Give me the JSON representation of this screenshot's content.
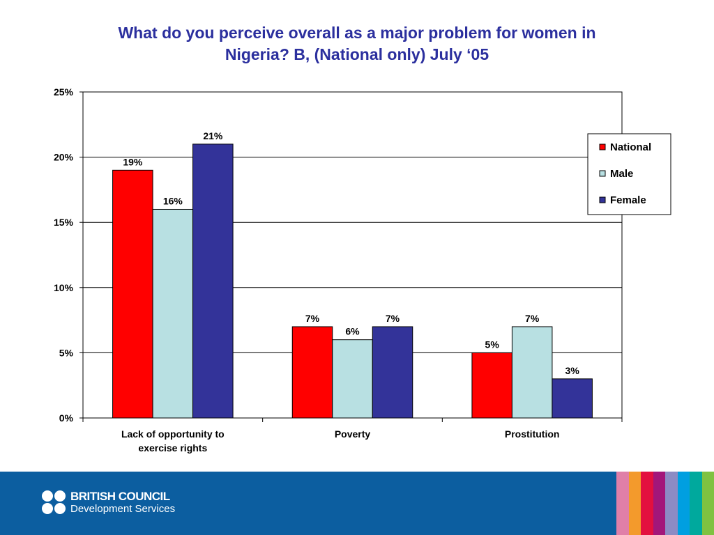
{
  "slide": {
    "title_line1": "What do you perceive overall as a major problem for women in",
    "title_line2": "Nigeria? B, (National only) July ‘05"
  },
  "chart_data": {
    "type": "bar",
    "categories": [
      [
        "Lack of opportunity to",
        "exercise rights"
      ],
      [
        "Poverty"
      ],
      [
        "Prostitution"
      ]
    ],
    "series": [
      {
        "name": "National",
        "color": "#FF0000",
        "values": [
          19,
          7,
          5
        ]
      },
      {
        "name": "Male",
        "color": "#B8E0E2",
        "values": [
          16,
          6,
          7
        ]
      },
      {
        "name": "Female",
        "color": "#333399",
        "values": [
          21,
          7,
          3
        ]
      }
    ],
    "value_labels": [
      [
        "19%",
        "7%",
        "5%"
      ],
      [
        "16%",
        "6%",
        "7%"
      ],
      [
        "21%",
        "7%",
        "3%"
      ]
    ],
    "yticks": [
      "0%",
      "5%",
      "10%",
      "15%",
      "20%",
      "25%"
    ],
    "ylim": [
      0,
      25
    ],
    "grid": true,
    "legend": "right"
  },
  "footer": {
    "org_line1": "BRITISH COUNCIL",
    "org_line2": "Development Services",
    "background": "#0C5EA0",
    "stripe_colors": [
      "#E07FA8",
      "#F39A2C",
      "#E3103F",
      "#A3167A",
      "#8C8BC4",
      "#009FE0",
      "#00A99D",
      "#7FC241"
    ]
  }
}
